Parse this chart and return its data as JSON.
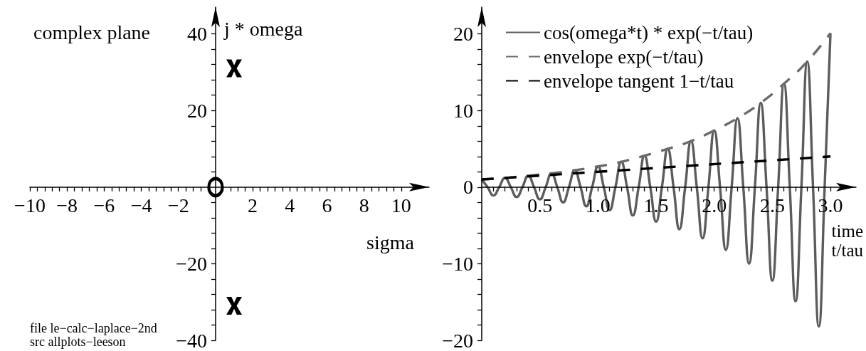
{
  "chart_data": [
    {
      "type": "scatter",
      "title": "complex plane",
      "xlabel": "sigma",
      "ylabel": "j * omega",
      "annotations": [
        "file le−calc−laplace−2nd",
        "src allplots−leeson"
      ],
      "xlim": [
        -10,
        11.5
      ],
      "ylim": [
        -40,
        47
      ],
      "xticks": [
        {
          "value": -10,
          "label": "−10"
        },
        {
          "value": -9.6,
          "label": null
        },
        {
          "value": -9.2,
          "label": null
        },
        {
          "value": -8.8,
          "label": null
        },
        {
          "value": -8.4,
          "label": null
        },
        {
          "value": -8,
          "label": "−8"
        },
        {
          "value": -7.6,
          "label": null
        },
        {
          "value": -7.2,
          "label": null
        },
        {
          "value": -6.8,
          "label": null
        },
        {
          "value": -6.4,
          "label": null
        },
        {
          "value": -6,
          "label": "−6"
        },
        {
          "value": -5.6,
          "label": null
        },
        {
          "value": -5.2,
          "label": null
        },
        {
          "value": -4.8,
          "label": null
        },
        {
          "value": -4.4,
          "label": null
        },
        {
          "value": -4,
          "label": "−4"
        },
        {
          "value": -3.6,
          "label": null
        },
        {
          "value": -3.2,
          "label": null
        },
        {
          "value": -2.8,
          "label": null
        },
        {
          "value": -2.4,
          "label": null
        },
        {
          "value": -2,
          "label": "−2"
        },
        {
          "value": -1.6,
          "label": null
        },
        {
          "value": -1.2,
          "label": null
        },
        {
          "value": -0.8,
          "label": null
        },
        {
          "value": -0.4,
          "label": null
        },
        {
          "value": 0.4,
          "label": null
        },
        {
          "value": 0.8,
          "label": null
        },
        {
          "value": 1.2,
          "label": null
        },
        {
          "value": 1.6,
          "label": null
        },
        2,
        {
          "value": 2.4,
          "label": null
        },
        {
          "value": 2.8,
          "label": null
        },
        {
          "value": 3.2,
          "label": null
        },
        {
          "value": 3.6,
          "label": null
        },
        4,
        {
          "value": 4.4,
          "label": null
        },
        {
          "value": 4.8,
          "label": null
        },
        {
          "value": 5.2,
          "label": null
        },
        {
          "value": 5.6,
          "label": null
        },
        6,
        {
          "value": 6.4,
          "label": null
        },
        {
          "value": 6.8,
          "label": null
        },
        {
          "value": 7.2,
          "label": null
        },
        {
          "value": 7.6,
          "label": null
        },
        8,
        {
          "value": 8.4,
          "label": null
        },
        {
          "value": 8.8,
          "label": null
        },
        {
          "value": 9.2,
          "label": null
        },
        {
          "value": 9.6,
          "label": null
        },
        10
      ],
      "yticks": [
        {
          "value": -40,
          "label": "−40"
        },
        {
          "value": -36,
          "label": null
        },
        {
          "value": -32,
          "label": null
        },
        {
          "value": -28,
          "label": null
        },
        {
          "value": -24,
          "label": null
        },
        {
          "value": -20,
          "label": "−20"
        },
        {
          "value": -16,
          "label": null
        },
        {
          "value": -12,
          "label": null
        },
        {
          "value": -8,
          "label": null
        },
        {
          "value": -4,
          "label": null
        },
        {
          "value": 4,
          "label": null
        },
        {
          "value": 8,
          "label": null
        },
        {
          "value": 12,
          "label": null
        },
        {
          "value": 16,
          "label": null
        },
        20,
        {
          "value": 24,
          "label": null
        },
        {
          "value": 28,
          "label": null
        },
        {
          "value": 32,
          "label": null
        },
        {
          "value": 36,
          "label": null
        },
        40
      ],
      "series": [
        {
          "color": "#000000",
          "marker": "cross",
          "x": [
            1,
            1
          ],
          "values": [
            31,
            -31
          ]
        },
        {
          "color": "#000000",
          "marker": "circle",
          "x": [
            0
          ],
          "values": [
            0
          ]
        }
      ]
    },
    {
      "type": "line",
      "xlabel": "time t/tau",
      "legend": "top left",
      "xlim": [
        0,
        3.22
      ],
      "ylim": [
        -20,
        23.5
      ],
      "xticks": [
        {
          "value": 0.1,
          "label": null
        },
        {
          "value": 0.2,
          "label": null
        },
        {
          "value": 0.3,
          "label": null
        },
        {
          "value": 0.4,
          "label": null
        },
        0.5,
        {
          "value": 0.6,
          "label": null
        },
        {
          "value": 0.7,
          "label": null
        },
        {
          "value": 0.8,
          "label": null
        },
        {
          "value": 0.9,
          "label": null
        },
        {
          "value": 1,
          "label": "1.0"
        },
        {
          "value": 1.1,
          "label": null
        },
        {
          "value": 1.2,
          "label": null
        },
        {
          "value": 1.3,
          "label": null
        },
        {
          "value": 1.4,
          "label": null
        },
        1.5,
        {
          "value": 1.6,
          "label": null
        },
        {
          "value": 1.7,
          "label": null
        },
        {
          "value": 1.8,
          "label": null
        },
        {
          "value": 1.9,
          "label": null
        },
        {
          "value": 2,
          "label": "2.0"
        },
        {
          "value": 2.1,
          "label": null
        },
        {
          "value": 2.2,
          "label": null
        },
        {
          "value": 2.3,
          "label": null
        },
        {
          "value": 2.4,
          "label": null
        },
        2.5,
        {
          "value": 2.6,
          "label": null
        },
        {
          "value": 2.7,
          "label": null
        },
        {
          "value": 2.8,
          "label": null
        },
        {
          "value": 2.9,
          "label": null
        },
        {
          "value": 3,
          "label": "3.0"
        }
      ],
      "yticks": [
        {
          "value": -20,
          "label": "−20"
        },
        {
          "value": -18,
          "label": null
        },
        {
          "value": -16,
          "label": null
        },
        {
          "value": -14,
          "label": null
        },
        {
          "value": -12,
          "label": null
        },
        {
          "value": -10,
          "label": "−10"
        },
        {
          "value": -8,
          "label": null
        },
        {
          "value": -6,
          "label": null
        },
        {
          "value": -4,
          "label": null
        },
        {
          "value": -2,
          "label": null
        },
        0,
        {
          "value": 2,
          "label": null
        },
        {
          "value": 4,
          "label": null
        },
        {
          "value": 6,
          "label": null
        },
        {
          "value": 8,
          "label": null
        },
        10,
        {
          "value": 12,
          "label": null
        },
        {
          "value": 14,
          "label": null
        },
        {
          "value": 16,
          "label": null
        },
        {
          "value": 18,
          "label": null
        },
        20
      ],
      "series": [
        {
          "name": "cos(omega*t) * exp(−t/tau)",
          "color": "#5c5c5c",
          "line_style": "solid",
          "x": [
            0,
            0.05,
            0.1,
            0.15,
            0.2,
            0.25,
            0.3,
            0.35,
            0.4,
            0.45,
            0.5,
            0.55,
            0.6,
            0.65,
            0.7,
            0.75,
            0.8,
            0.85,
            0.9,
            0.95,
            1,
            1.05,
            1.1,
            1.15,
            1.2,
            1.25,
            1.3,
            1.35,
            1.4,
            1.45,
            1.5,
            1.55,
            1.6,
            1.65,
            1.7,
            1.75,
            1.8,
            1.85,
            1.9,
            1.95,
            2,
            2.05,
            2.1,
            2.15,
            2.2,
            2.25,
            2.3,
            2.35,
            2.4,
            2.45,
            2.5,
            2.55,
            2.6,
            2.65,
            2.7,
            2.75,
            2.8,
            2.85,
            2.9,
            2.95,
            3
          ],
          "values": [
            1,
            0,
            -1.1,
            0,
            1.2,
            0,
            -1.3,
            0,
            1.5,
            0,
            -1.6,
            0,
            1.8,
            0,
            -2,
            0,
            2.2,
            0,
            -2.5,
            0,
            2.7,
            0,
            -3,
            0,
            3.3,
            0,
            -3.7,
            0,
            4.1,
            0,
            -4.5,
            0,
            5,
            0,
            -5.5,
            0,
            6,
            0,
            -6.7,
            0,
            7.4,
            0,
            -8.2,
            0,
            9,
            0,
            -10,
            0,
            11,
            0,
            -12.2,
            0,
            13.5,
            0,
            -14.9,
            0,
            16.4,
            0,
            -18.2,
            0,
            20.1
          ]
        },
        {
          "name": "envelope exp(−t/tau)",
          "color": "#6a6a6a",
          "line_style": "dashed",
          "x": [
            0,
            0.2,
            0.4,
            0.6,
            0.8,
            1,
            1.2,
            1.4,
            1.6,
            1.8,
            2,
            2.2,
            2.4,
            2.6,
            2.8,
            3
          ],
          "values": [
            1,
            1.2,
            1.5,
            1.8,
            2.2,
            2.7,
            3.3,
            4.1,
            5,
            6,
            7.4,
            9,
            11,
            13.5,
            16.4,
            20.1
          ]
        },
        {
          "name": "envelope tangent 1−t/tau",
          "color": "#000000",
          "line_style": "dashed",
          "x": [
            0,
            3
          ],
          "values": [
            1,
            4
          ]
        }
      ]
    }
  ]
}
